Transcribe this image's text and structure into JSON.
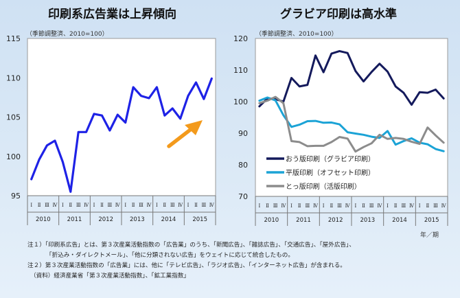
{
  "left": {
    "title": "印刷系広告業は上昇傾向",
    "unit": "（季節調整済、2010=100）"
  },
  "right": {
    "title": "グラビア印刷は高水準",
    "unit": "（季節調整済、2010=100）",
    "xunit": "年／期"
  },
  "colors": {
    "blue": "#1e22e6",
    "navy": "#141a5c",
    "cyan": "#1ba3d6",
    "gray": "#8c8c8c",
    "arrow": "#f39a1c"
  },
  "notes": [
    "注１）「印刷系広告」とは、第３次産業活動指数の「広告業」のうち、「新聞広告」、「雑誌広告」、「交通広告」、「屋外広告」、",
    "「折込み・ダイレクトメール」、「他に分類されない広告」をウェイトに応じて統合したもの。",
    "注２）第３次産業活動指数の「広告業」には、他に「テレビ広告」、「ラジオ広告」、「インターネット広告」が含まれる。",
    "（資料）経済産業省「第３次産業活動指数」、「鉱工業指数」"
  ],
  "chart_data": [
    {
      "type": "line",
      "title": "印刷系広告業は上昇傾向",
      "unit": "（季節調整済、2010=100）",
      "ylim": [
        95,
        115
      ],
      "yticks": [
        95,
        100,
        105,
        110,
        115
      ],
      "quarters": [
        "Ⅰ",
        "Ⅱ",
        "Ⅲ",
        "Ⅳ",
        "Ⅰ",
        "Ⅱ",
        "Ⅲ",
        "Ⅳ",
        "Ⅰ",
        "Ⅱ",
        "Ⅲ",
        "Ⅳ",
        "Ⅰ",
        "Ⅱ",
        "Ⅲ",
        "Ⅳ",
        "Ⅰ",
        "Ⅱ",
        "Ⅲ",
        "Ⅳ",
        "Ⅰ",
        "Ⅱ",
        "Ⅲ",
        "Ⅳ"
      ],
      "years": [
        "2010",
        "2011",
        "2012",
        "2013",
        "2014",
        "2015"
      ],
      "series": [
        {
          "values": [
            97.1,
            99.6,
            101.4,
            102.0,
            99.3,
            95.5,
            103.1,
            103.1,
            105.4,
            105.2,
            103.3,
            105.3,
            104.3,
            108.8,
            107.7,
            107.4,
            108.8,
            105.2,
            106.1,
            104.8,
            107.7,
            109.4,
            107.3,
            109.9
          ],
          "color": "#1e22e6"
        }
      ],
      "grid": false
    },
    {
      "type": "line",
      "title": "グラビア印刷は高水準",
      "unit": "（季節調整済、2010=100）",
      "ylim": [
        70,
        120
      ],
      "yticks": [
        70,
        80,
        90,
        100,
        110,
        120
      ],
      "quarters": [
        "Ⅰ",
        "Ⅱ",
        "Ⅲ",
        "Ⅳ",
        "Ⅰ",
        "Ⅱ",
        "Ⅲ",
        "Ⅳ",
        "Ⅰ",
        "Ⅱ",
        "Ⅲ",
        "Ⅳ",
        "Ⅰ",
        "Ⅱ",
        "Ⅲ",
        "Ⅳ",
        "Ⅰ",
        "Ⅱ",
        "Ⅲ",
        "Ⅳ",
        "Ⅰ",
        "Ⅱ",
        "Ⅲ",
        "Ⅳ"
      ],
      "years": [
        "2010",
        "2011",
        "2012",
        "2013",
        "2014",
        "2015"
      ],
      "xunit": "年／期",
      "legend_position": "bottom-left",
      "series": [
        {
          "name": "おう版印刷（グラビア印刷）",
          "color": "#141a5c",
          "values": [
            98.5,
            101.0,
            100.8,
            100.0,
            107.5,
            104.8,
            105.3,
            114.6,
            109.3,
            115.2,
            116.0,
            115.4,
            109.7,
            106.4,
            109.4,
            112.0,
            109.5,
            104.8,
            102.8,
            99.0,
            103.0,
            102.8,
            103.8,
            101.0
          ]
        },
        {
          "name": "平版印刷（オフセット印刷）",
          "color": "#1ba3d6",
          "values": [
            100.3,
            101.3,
            100.4,
            95.7,
            92.0,
            92.7,
            93.8,
            93.9,
            93.3,
            93.4,
            92.8,
            90.3,
            89.9,
            89.5,
            88.9,
            88.5,
            90.7,
            86.4,
            87.5,
            88.4,
            87.0,
            86.5,
            85.0,
            84.3
          ]
        },
        {
          "name": "とっ版印刷（活版印刷）",
          "color": "#8c8c8c",
          "values": [
            99.5,
            100.3,
            101.5,
            99.5,
            87.5,
            87.2,
            85.9,
            86.0,
            86.0,
            87.2,
            88.8,
            88.3,
            84.2,
            85.6,
            86.8,
            89.5,
            88.2,
            88.5,
            88.2,
            87.3,
            86.6,
            91.8,
            89.3,
            87.0
          ]
        }
      ],
      "grid": false
    }
  ]
}
